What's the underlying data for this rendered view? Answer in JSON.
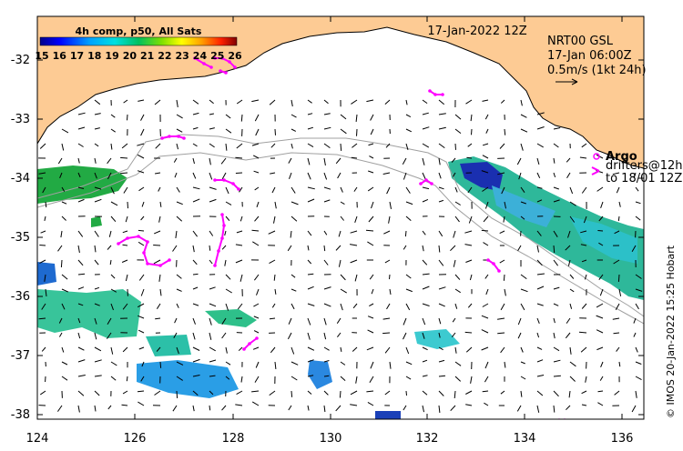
{
  "map": {
    "date_label": "17-Jan-2022 12Z",
    "product": {
      "line1": "NRT00 GSL",
      "line2": "17-Jan 06:00Z",
      "line3": "0.5m/s (1kt 24h)"
    },
    "legend": {
      "argo_label": "Argo",
      "drifters_line1": "drifters@12h",
      "drifters_line2": "to 18/01 12Z"
    },
    "colorbar": {
      "title": "4h comp, p50, All Sats",
      "ticks": [
        "15",
        "16",
        "17",
        "18",
        "19",
        "20",
        "21",
        "22",
        "23",
        "24",
        "25",
        "26"
      ]
    },
    "credit": "© IMOS 20-Jan-2022 15:25 Hobart",
    "lon_ticks": [
      "124",
      "126",
      "128",
      "130",
      "132",
      "134",
      "136"
    ],
    "lat_ticks": [
      "-32",
      "-33",
      "-34",
      "-35",
      "-36",
      "-37",
      "-38"
    ],
    "colors": {
      "land": "#fdcb94",
      "arrows": "#000000",
      "argo": "#ff00ff",
      "drifters": "#ff00ff",
      "contours": "#a0a0a0"
    },
    "sst_range_c": [
      15,
      26
    ]
  }
}
